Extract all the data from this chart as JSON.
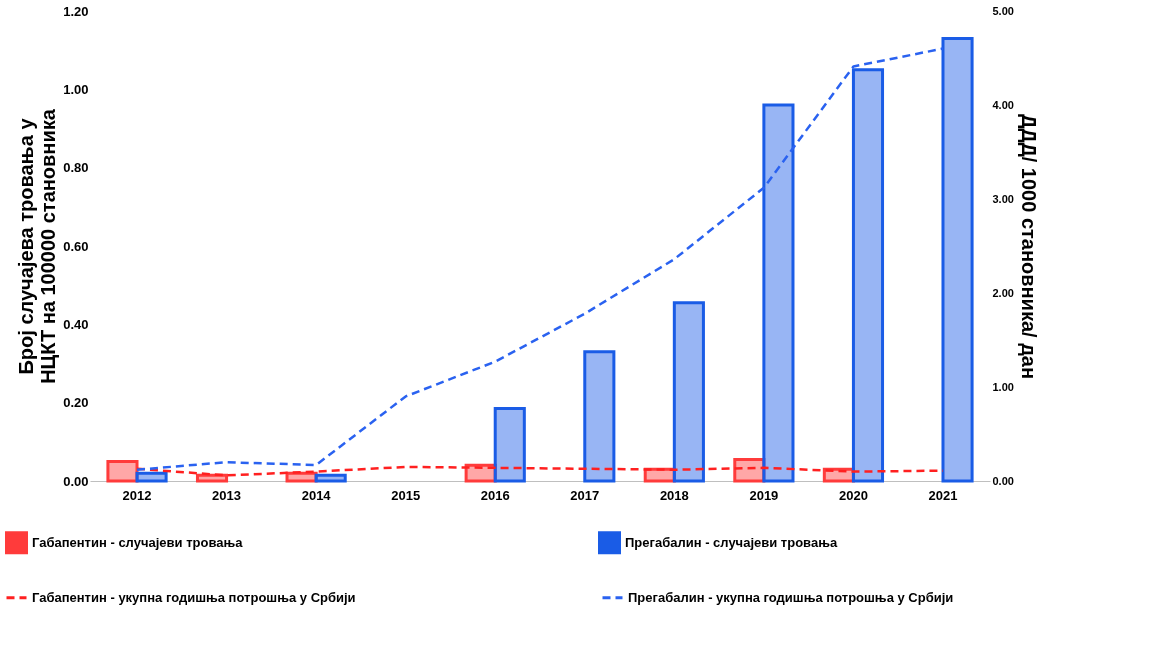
{
  "chart_data": {
    "type": "bar",
    "ylabel": "Број случајева тровања у\nНЦКТ на 100000 становника",
    "y2label": "ДДД/ 1000 становника/ дан",
    "categories": [
      "2012",
      "2013",
      "2014",
      "2015",
      "2016",
      "2017",
      "2018",
      "2019",
      "2020",
      "2021"
    ],
    "series": [
      {
        "name": "Габапентин - случајеви тровања",
        "color": "#ff3b3b",
        "values": [
          0.05,
          0.015,
          0.02,
          null,
          0.04,
          null,
          0.03,
          0.055,
          0.03,
          null
        ]
      },
      {
        "name": "Прегабалин - случајеви тровања",
        "color": "#1a5ce6",
        "values": [
          0.02,
          null,
          0.015,
          null,
          0.185,
          0.33,
          0.455,
          0.96,
          1.05,
          1.13
        ]
      },
      {
        "name": "Габапентин - укупна годишња потрошња у Србији",
        "type": "line",
        "axis": "y2",
        "color": "#ff2020",
        "values": [
          0.13,
          0.06,
          0.1,
          0.15,
          0.14,
          0.13,
          0.12,
          0.14,
          0.1,
          0.11
        ]
      },
      {
        "name": "Прегабалин - укупна годишња потрошња у Србији",
        "type": "line",
        "axis": "y2",
        "color": "#2a62f0",
        "values": [
          0.12,
          0.2,
          0.17,
          0.9,
          1.27,
          1.78,
          2.36,
          3.12,
          4.41,
          4.6
        ]
      }
    ],
    "ylim": [
      0,
      1.2
    ],
    "yticks": [
      {
        "value": 0,
        "label": "0.00"
      },
      {
        "value": 0.2,
        "label": "0.20"
      },
      {
        "value": 0.4,
        "label": "0.40"
      },
      {
        "value": 0.6,
        "label": "0.60"
      },
      {
        "value": 0.8,
        "label": "0.80"
      },
      {
        "value": 1.0,
        "label": "1.00"
      },
      {
        "value": 1.2,
        "label": "1.20"
      }
    ],
    "y2lim": [
      0,
      5
    ],
    "y2ticks": [
      {
        "value": 0,
        "label": "0.00"
      },
      {
        "value": 1,
        "label": "1.00"
      },
      {
        "value": 2,
        "label": "2.00"
      },
      {
        "value": 3,
        "label": "3.00"
      },
      {
        "value": 4,
        "label": "4.00"
      },
      {
        "value": 5,
        "label": "5.00"
      }
    ],
    "grid": false,
    "legend": "bottom",
    "line_style": "dashed"
  }
}
